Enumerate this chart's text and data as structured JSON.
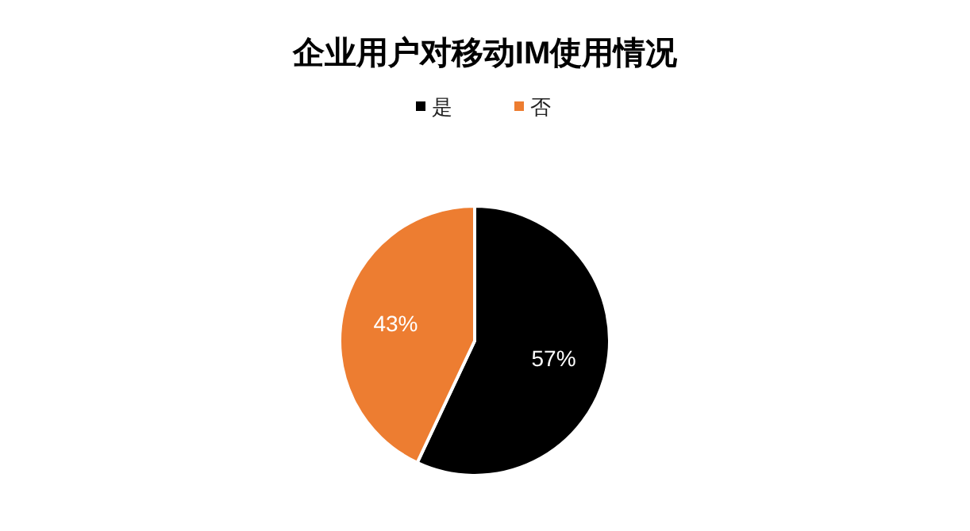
{
  "chart_data": {
    "type": "pie",
    "title": "企业用户对移动IM使用情况",
    "categories": [
      "是",
      "否"
    ],
    "values": [
      57,
      43
    ],
    "value_labels": [
      "57%",
      "43%"
    ],
    "colors": [
      "#000000",
      "#ed7d31"
    ],
    "legend": "top"
  }
}
